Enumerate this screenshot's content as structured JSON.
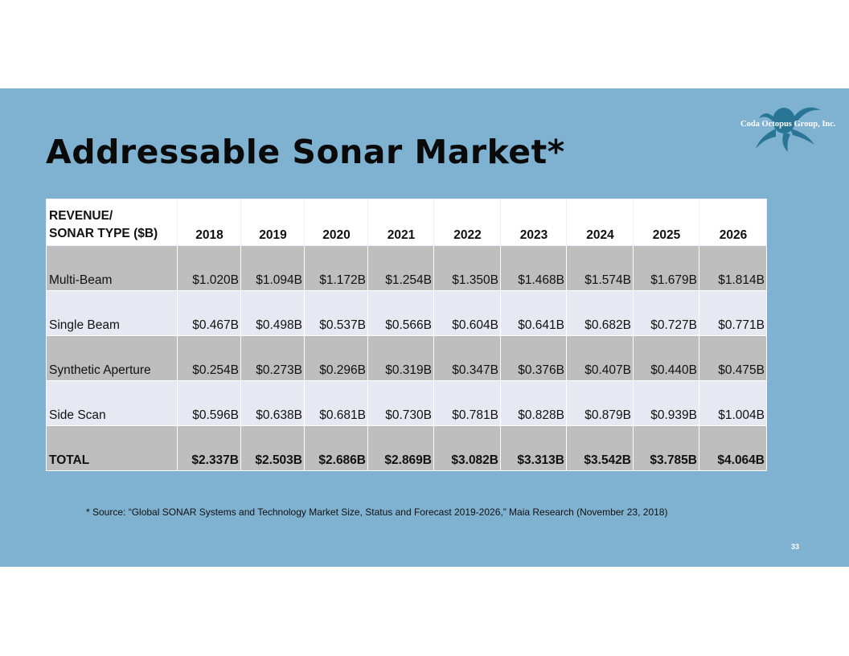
{
  "title": "Addressable Sonar Market*",
  "logo_text": "Coda Octopus Group, Inc.",
  "table": {
    "header_line1": "REVENUE/",
    "header_line2": "SONAR TYPE ($B)",
    "years": [
      "2018",
      "2019",
      "2020",
      "2021",
      "2022",
      "2023",
      "2024",
      "2025",
      "2026"
    ],
    "rows": [
      {
        "label": "Multi-Beam",
        "values": [
          "$1.020B",
          "$1.094B",
          "$1.172B",
          "$1.254B",
          "$1.350B",
          "$1.468B",
          "$1.574B",
          "$1.679B",
          "$1.814B"
        ]
      },
      {
        "label": "Single Beam",
        "values": [
          "$0.467B",
          "$0.498B",
          "$0.537B",
          "$0.566B",
          "$0.604B",
          "$0.641B",
          "$0.682B",
          "$0.727B",
          "$0.771B"
        ]
      },
      {
        "label": "Synthetic Aperture",
        "values": [
          "$0.254B",
          "$0.273B",
          "$0.296B",
          "$0.319B",
          "$0.347B",
          "$0.376B",
          "$0.407B",
          "$0.440B",
          "$0.475B"
        ]
      },
      {
        "label": "Side Scan",
        "values": [
          "$0.596B",
          "$0.638B",
          "$0.681B",
          "$0.730B",
          "$0.781B",
          "$0.828B",
          "$0.879B",
          "$0.939B",
          "$1.004B"
        ]
      },
      {
        "label": "TOTAL",
        "values": [
          "$2.337B",
          "$2.503B",
          "$2.686B",
          "$2.869B",
          "$3.082B",
          "$3.313B",
          "$3.542B",
          "$3.785B",
          "$4.064B"
        ]
      }
    ]
  },
  "footnote": "* Source: “Global SONAR Systems and Technology Market Size, Status and Forecast 2019-2026,” Maia Research (November 23, 2018)",
  "page_number": "33"
}
